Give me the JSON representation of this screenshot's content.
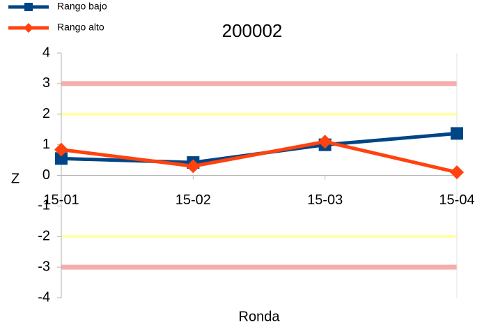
{
  "chart_data": {
    "type": "line",
    "title": "200002",
    "x_label": "Ronda",
    "y_label": "Z",
    "categories": [
      "15-01",
      "15-02",
      "15-03",
      "15-04"
    ],
    "series": [
      {
        "name": "Rango bajo",
        "color": "#004586",
        "marker": "square",
        "values": [
          0.55,
          0.42,
          1.0,
          1.37
        ]
      },
      {
        "name": "Rango alto",
        "color": "#ff420e",
        "marker": "diamond",
        "values": [
          0.84,
          0.3,
          1.1,
          0.1
        ]
      }
    ],
    "reference_lines": [
      {
        "value": 3,
        "color": "#f4a0a0"
      },
      {
        "value": 2,
        "color": "#ffff99"
      },
      {
        "value": -2,
        "color": "#ffff99"
      },
      {
        "value": -3,
        "color": "#f4a0a0"
      }
    ],
    "ylim": [
      -4,
      4
    ],
    "yticks": [
      -4,
      -3,
      -2,
      -1,
      0,
      1,
      2,
      3,
      4
    ],
    "legend": "top-left"
  }
}
